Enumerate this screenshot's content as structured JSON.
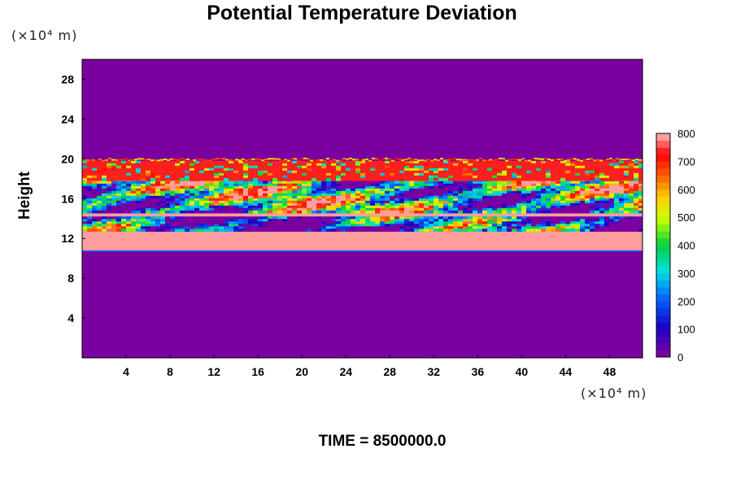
{
  "chart_data": {
    "type": "heatmap",
    "title": "Potential Temperature Deviation",
    "ylabel": "Height",
    "xlabel": "",
    "x_unit": "(×10⁴ m)",
    "y_unit": "(×10⁴ m)",
    "footer": "TIME = 8500000.0",
    "xlim": [
      0,
      51
    ],
    "ylim": [
      0,
      30
    ],
    "x_ticks": [
      "4",
      "8",
      "12",
      "16",
      "20",
      "24",
      "28",
      "32",
      "36",
      "40",
      "44",
      "48"
    ],
    "y_ticks": [
      "4",
      "8",
      "12",
      "16",
      "20",
      "24",
      "28"
    ],
    "colorbar": {
      "range": [
        0,
        800
      ],
      "ticks": [
        "0",
        "100",
        "200",
        "300",
        "400",
        "500",
        "600",
        "700",
        "800"
      ],
      "colormap": "rainbow",
      "levels": 32
    },
    "field_bands": [
      {
        "region": "below",
        "y_range": [
          0,
          10.8
        ],
        "value": 0
      },
      {
        "region": "lower-uniform",
        "y_range": [
          10.8,
          12.8
        ],
        "value": 800
      },
      {
        "region": "lower-filament",
        "y_range": [
          12.8,
          14.2
        ],
        "value": 150
      },
      {
        "region": "mid-uniform",
        "y_range": [
          14.2,
          14.8
        ],
        "value": 800
      },
      {
        "region": "mixed-layer",
        "y_range": [
          14.8,
          18.0
        ],
        "value": 350
      },
      {
        "region": "upper-uniform",
        "y_range": [
          18.0,
          19.8
        ],
        "value": 760
      },
      {
        "region": "above",
        "y_range": [
          19.8,
          30
        ],
        "value": 0
      }
    ],
    "grid": false,
    "legend": "colorbar-right"
  }
}
